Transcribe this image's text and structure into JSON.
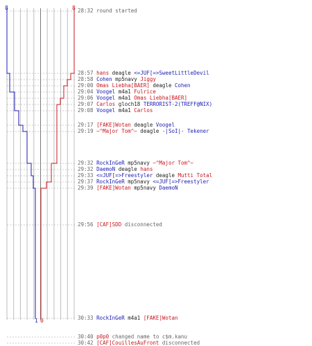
{
  "chart_data": {
    "type": "line",
    "title": "",
    "xlabel": "",
    "ylabel": "",
    "team_blue": {
      "color": "#1b1bb4",
      "start_count": "8",
      "end_count": "1",
      "steps": [
        "28:57",
        "29:04",
        "29:07",
        "29:17",
        "29:19",
        "29:32",
        "29:33",
        "29:39",
        "30:33"
      ]
    },
    "team_red": {
      "color": "#c8161d",
      "start_count": "8",
      "end_count": "0",
      "steps": [
        "28:57",
        "28:58",
        "29:00",
        "29:06",
        "29:07",
        "29:32",
        "29:37",
        "29:39",
        "30:33"
      ]
    }
  },
  "events": [
    {
      "time": "28:32",
      "parts": [
        {
          "text": "round started",
          "style": "g"
        }
      ]
    },
    {
      "time": "28:57",
      "parts": [
        {
          "text": "hans",
          "style": "r"
        },
        {
          "text": " deagle ",
          "style": "k"
        },
        {
          "text": "<=JUF[=>SweetLittleDevil",
          "style": "b"
        }
      ]
    },
    {
      "time": "28:58",
      "parts": [
        {
          "text": "Cohen",
          "style": "b"
        },
        {
          "text": " mp5navy ",
          "style": "k"
        },
        {
          "text": "Jiggy",
          "style": "r"
        }
      ]
    },
    {
      "time": "29:00",
      "parts": [
        {
          "text": "Omas Liebha[BAER]",
          "style": "r"
        },
        {
          "text": " deagle ",
          "style": "k"
        },
        {
          "text": "Cohen",
          "style": "b"
        }
      ]
    },
    {
      "time": "29:04",
      "parts": [
        {
          "text": "Voogel",
          "style": "b"
        },
        {
          "text": " m4a1 ",
          "style": "k"
        },
        {
          "text": "Fulrice",
          "style": "r"
        }
      ]
    },
    {
      "time": "29:06",
      "parts": [
        {
          "text": "Voogel",
          "style": "b"
        },
        {
          "text": " m4a1 ",
          "style": "k"
        },
        {
          "text": "Omas Liebha[BAER]",
          "style": "r"
        }
      ]
    },
    {
      "time": "29:07",
      "parts": [
        {
          "text": "Carlos",
          "style": "r"
        },
        {
          "text": " gloch18 ",
          "style": "k"
        },
        {
          "text": "TERRORIST-2(TREFF@NIX)",
          "style": "b"
        }
      ]
    },
    {
      "time": "29:08",
      "parts": [
        {
          "text": "Voogel",
          "style": "b"
        },
        {
          "text": " m4a1 ",
          "style": "k"
        },
        {
          "text": "Carlos",
          "style": "r"
        }
      ]
    },
    {
      "time": "29:17",
      "parts": [
        {
          "text": "[FAKE]Wotan",
          "style": "r"
        },
        {
          "text": " deagle ",
          "style": "k"
        },
        {
          "text": "Voogel",
          "style": "b"
        }
      ]
    },
    {
      "time": "29:19",
      "parts": [
        {
          "text": "~^Major Tom^~",
          "style": "r"
        },
        {
          "text": " deagle ",
          "style": "k"
        },
        {
          "text": "-|SoI|- Tekener",
          "style": "b"
        }
      ]
    },
    {
      "time": "29:32",
      "parts": [
        {
          "text": "RockInGeR",
          "style": "b"
        },
        {
          "text": " mp5navy ",
          "style": "k"
        },
        {
          "text": "~^Major Tom^~",
          "style": "r"
        }
      ]
    },
    {
      "time": "29:32",
      "parts": [
        {
          "text": "DaemoN",
          "style": "b"
        },
        {
          "text": " deagle ",
          "style": "k"
        },
        {
          "text": "hans",
          "style": "r"
        }
      ]
    },
    {
      "time": "29:33",
      "parts": [
        {
          "text": "<=JUF[=>Freestyler",
          "style": "b"
        },
        {
          "text": " deagle ",
          "style": "k"
        },
        {
          "text": "Mutti Total",
          "style": "r"
        }
      ]
    },
    {
      "time": "29:37",
      "parts": [
        {
          "text": "RockInGeR",
          "style": "b"
        },
        {
          "text": " mp5navy ",
          "style": "k"
        },
        {
          "text": "<=JUF[=>Freestyler",
          "style": "b"
        }
      ]
    },
    {
      "time": "29:39",
      "parts": [
        {
          "text": "[FAKE]Wotan",
          "style": "r"
        },
        {
          "text": " mp5navy ",
          "style": "k"
        },
        {
          "text": "DaemoN",
          "style": "b"
        }
      ]
    },
    {
      "time": "29:56",
      "parts": [
        {
          "text": "[CAF]SDD",
          "style": "r"
        },
        {
          "text": " disconnected",
          "style": "g"
        }
      ]
    },
    {
      "time": "30:33",
      "parts": [
        {
          "text": "RockInGeR",
          "style": "b"
        },
        {
          "text": " m4a1 ",
          "style": "k"
        },
        {
          "text": "[FAKE]Wotan",
          "style": "r"
        }
      ]
    },
    {
      "time": "30:40",
      "parts": [
        {
          "text": "p0p0",
          "style": "r"
        },
        {
          "text": " changed name to c$m.kanu",
          "style": "g"
        }
      ]
    },
    {
      "time": "30:42",
      "parts": [
        {
          "text": "[CAF]CouillesAuFront",
          "style": "r"
        },
        {
          "text": " disconnected",
          "style": "g"
        }
      ]
    }
  ]
}
